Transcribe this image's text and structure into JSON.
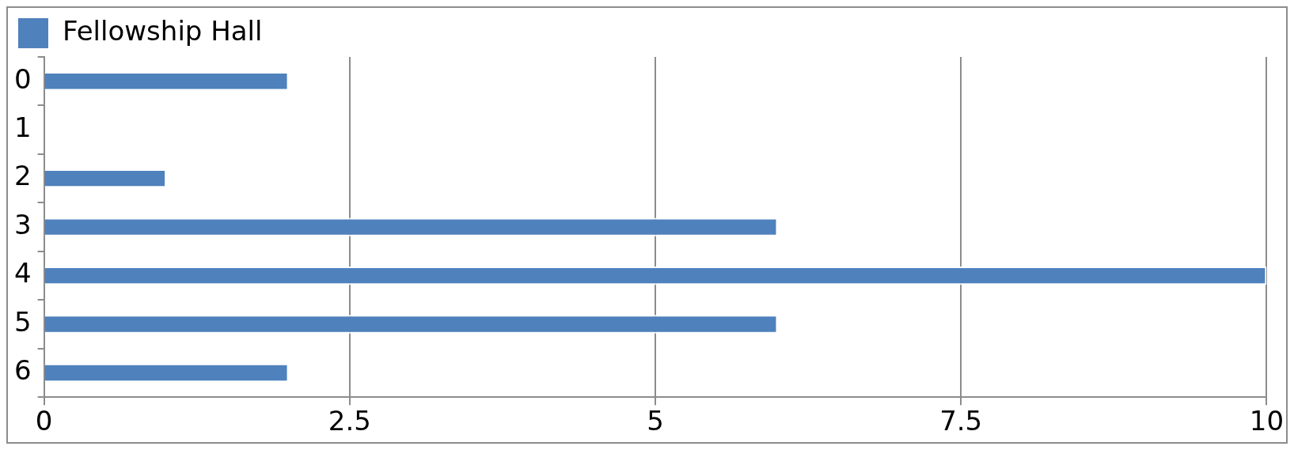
{
  "chart_data": {
    "type": "bar",
    "orientation": "horizontal",
    "categories": [
      "0",
      "1",
      "2",
      "3",
      "4",
      "5",
      "6"
    ],
    "series": [
      {
        "name": "Fellowship Hall",
        "color": "#4f81bd",
        "values": [
          2,
          0,
          1,
          6,
          10,
          6,
          2
        ]
      }
    ],
    "xlim": [
      0,
      10
    ],
    "xticks": [
      0,
      2.5,
      5,
      7.5,
      10
    ],
    "grid": "x",
    "legend": "top left"
  }
}
